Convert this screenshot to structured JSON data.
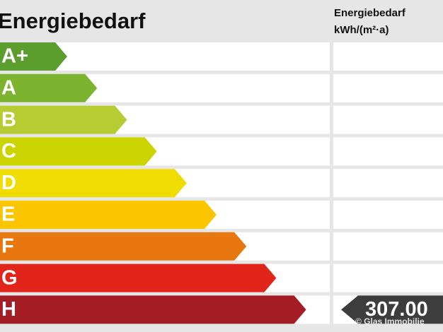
{
  "header": {
    "title": "Energiebedarf",
    "column_title": "Energiebedarf",
    "column_unit": "kWh/(m²·a)"
  },
  "classes": [
    {
      "label": "A+",
      "color": "#5c9e2e"
    },
    {
      "label": "A",
      "color": "#7cb42f"
    },
    {
      "label": "B",
      "color": "#b5cc33"
    },
    {
      "label": "C",
      "color": "#ccd400"
    },
    {
      "label": "D",
      "color": "#f0dc00"
    },
    {
      "label": "E",
      "color": "#fbc600"
    },
    {
      "label": "F",
      "color": "#e9770f"
    },
    {
      "label": "G",
      "color": "#e1251b"
    },
    {
      "label": "H",
      "color": "#a41d24"
    }
  ],
  "rating": {
    "value": "307.00",
    "color": "#3d3d3d"
  },
  "copyright": "© Glas Immobilie"
}
